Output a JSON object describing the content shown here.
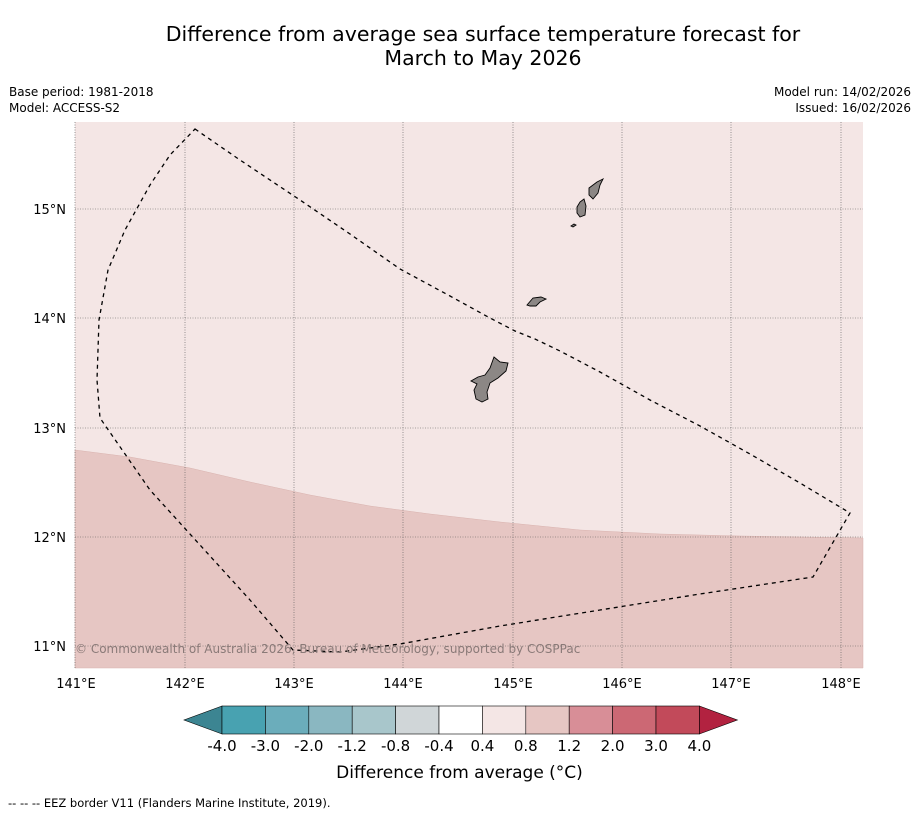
{
  "title": {
    "line1": "Difference from average sea surface temperature forecast for",
    "line2": "March to May 2026"
  },
  "meta": {
    "base_period": "Base period: 1981-2018",
    "model": "Model: ACCESS-S2",
    "model_run": "Model run: 14/02/2026",
    "issued": "Issued: 16/02/2026"
  },
  "map": {
    "lon_range": [
      141,
      148.2
    ],
    "lat_range": [
      10.8,
      15.8
    ],
    "lon_ticks": [
      "141°E",
      "142°E",
      "143°E",
      "144°E",
      "145°E",
      "146°E",
      "147°E",
      "148°E"
    ],
    "lat_ticks": [
      "15°N",
      "14°N",
      "13°N",
      "12°N",
      "11°N"
    ],
    "copyright": "© Commonwealth of Australia 2026, Bureau of Meteorology, supported by COSPPac",
    "regions": [
      {
        "anomaly_range": "0.4 to 0.8",
        "color": "#f4e6e5"
      },
      {
        "anomaly_range": "0.8 to 1.2",
        "color": "#e6c6c3"
      }
    ],
    "land_color": "#8c8785"
  },
  "colorbar": {
    "title": "Difference from average (°C)",
    "labels": [
      "-4.0",
      "-3.0",
      "-2.0",
      "-1.2",
      "-0.8",
      "-0.4",
      "0.4",
      "0.8",
      "1.2",
      "2.0",
      "3.0",
      "4.0"
    ],
    "colors": [
      "#48a2b1",
      "#6badbb",
      "#8ab7c1",
      "#a8c6cb",
      "#d0d6d8",
      "#ffffff",
      "#f4e6e5",
      "#e6c6c3",
      "#d88e97",
      "#cc6874",
      "#c24a5a"
    ],
    "under_color": "#3c8592",
    "over_color": "#b22240"
  },
  "footer": {
    "legend_line": "--  --  -- EEZ border V11 (Flanders Marine Institute, 2019)."
  }
}
